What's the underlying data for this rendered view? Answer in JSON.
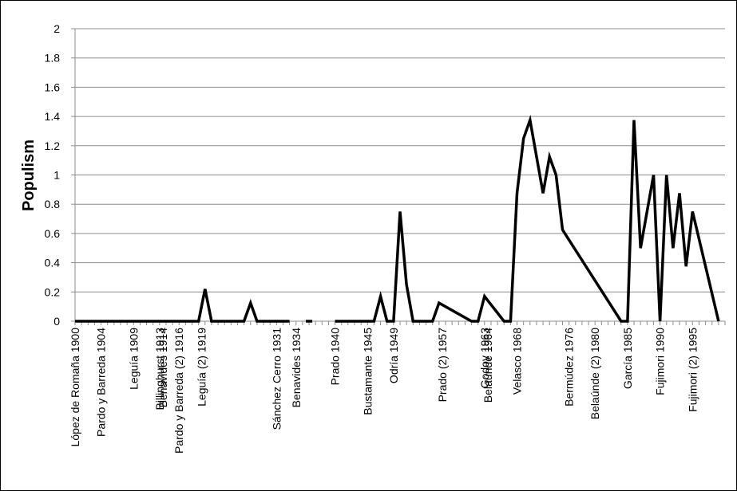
{
  "chart_data": {
    "type": "line",
    "title": "",
    "xlabel": "",
    "ylabel": "Populism",
    "ylim": [
      0,
      2
    ],
    "yticks": [
      "0",
      "0.2",
      "0.4",
      "0.6",
      "0.8",
      "1",
      "1.2",
      "1.4",
      "1.6",
      "1.8",
      "2"
    ],
    "grid": "horizontal",
    "legend": "none",
    "line_color": "#000000",
    "x_start_year": 1900,
    "x_end_year": 2000,
    "x_tick_labels": [
      {
        "label": "López de Romaña 1900",
        "year": 1900
      },
      {
        "label": "Pardo y Barreda 1904",
        "year": 1904
      },
      {
        "label": "Leguía 1909",
        "year": 1909
      },
      {
        "label": "Billinghurst 1913",
        "year": 1913
      },
      {
        "label": "Benavides 1914",
        "year": 1913.5
      },
      {
        "label": "Pardo y Barreda (2) 1916",
        "year": 1916
      },
      {
        "label": "Leguía (2) 1919",
        "year": 1919.5
      },
      {
        "label": "Sánchez Cerro 1931",
        "year": 1931
      },
      {
        "label": "Benavides 1934",
        "year": 1934
      },
      {
        "label": "Prado 1940",
        "year": 1940
      },
      {
        "label": "Bustamante 1945",
        "year": 1945
      },
      {
        "label": "Odría 1949",
        "year": 1949
      },
      {
        "label": "Prado (2) 1957",
        "year": 1956.5
      },
      {
        "label": "Godoy 1963",
        "year": 1963
      },
      {
        "label": "Belaúnde 1964",
        "year": 1963.5
      },
      {
        "label": "Velasco 1968",
        "year": 1968
      },
      {
        "label": "Bermúdez 1976",
        "year": 1976
      },
      {
        "label": "Belaúnde (2) 1980",
        "year": 1980
      },
      {
        "label": "García 1985",
        "year": 1985
      },
      {
        "label": "Fujimori 1990",
        "year": 1990
      },
      {
        "label": "Fujimori (2) 1995",
        "year": 1995
      }
    ],
    "series": [
      {
        "segments": [
          {
            "x": [
              1900,
              1919,
              1920,
              1921,
              1926,
              1927,
              1928,
              1933
            ],
            "y": [
              0,
              0,
              0.22,
              0,
              0,
              0.125,
              0,
              0
            ]
          },
          {
            "x": [
              1935.5,
              1936.5
            ],
            "y": [
              0,
              0
            ]
          },
          {
            "x": [
              1940,
              1946,
              1947,
              1948,
              1949,
              1950,
              1951,
              1952,
              1954,
              1955,
              1956,
              1961,
              1962,
              1963,
              1966,
              1967,
              1968,
              1969,
              1970,
              1972,
              1973,
              1974,
              1975,
              1984,
              1985,
              1986,
              1987,
              1989,
              1990,
              1991,
              1992,
              1993,
              1994,
              1995,
              1999
            ],
            "y": [
              0,
              0,
              0.17,
              0,
              0,
              0.75,
              0.25,
              0,
              0,
              0,
              0.125,
              0,
              0,
              0.17,
              0,
              0,
              0.875,
              1.25,
              1.375,
              0.875,
              1.125,
              1.0,
              0.625,
              0,
              0,
              1.375,
              0.5,
              1.0,
              0,
              1.0,
              0.5,
              0.875,
              0.375,
              0.75,
              0
            ]
          }
        ]
      }
    ]
  }
}
